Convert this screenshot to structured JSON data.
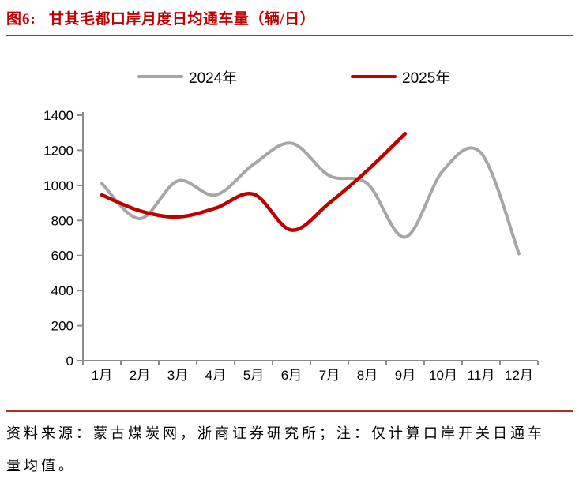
{
  "header": {
    "figure_label": "图6:",
    "title": "甘其毛都口岸月度日均通车量（辆/日）",
    "accent_color": "#C00000",
    "rule_color": "#A93226"
  },
  "legend": [
    {
      "label": "2024年",
      "color": "#A6A6A6"
    },
    {
      "label": "2025年",
      "color": "#C00000"
    }
  ],
  "chart_data": {
    "type": "line",
    "title": "甘其毛都口岸月度日均通车量（辆/日）",
    "categories": [
      "1月",
      "2月",
      "3月",
      "4月",
      "5月",
      "6月",
      "7月",
      "8月",
      "9月",
      "10月",
      "11月",
      "12月"
    ],
    "series": [
      {
        "name": "2024年",
        "color": "#A6A6A6",
        "stroke_width": 4,
        "values": [
          1010,
          810,
          1025,
          945,
          1120,
          1240,
          1055,
          1010,
          705,
          1085,
          1185,
          610
        ]
      },
      {
        "name": "2025年",
        "color": "#C00000",
        "stroke_width": 4.5,
        "values": [
          945,
          855,
          820,
          870,
          950,
          745,
          900,
          1085,
          1295
        ]
      }
    ],
    "ylim": [
      0,
      1400
    ],
    "yticks": [
      0,
      200,
      400,
      600,
      800,
      1000,
      1200,
      1400
    ],
    "xlabel": "",
    "ylabel": "",
    "grid": false,
    "smooth": true,
    "legend_position": "top",
    "axis_color": "#8C8C8C",
    "tick_label_color": "#000000"
  },
  "footer": {
    "note": "资料来源：蒙古煤炭网，浙商证券研究所；注：仅计算口岸开关日通车量均值。"
  }
}
